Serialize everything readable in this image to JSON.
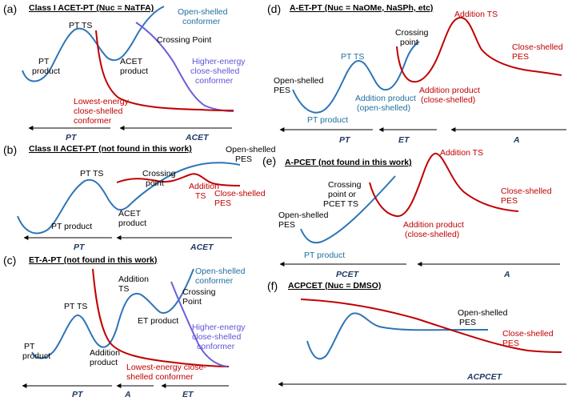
{
  "colors": {
    "open_shelled": "#2e75b6",
    "closed_shelled": "#c00000",
    "higher_energy": "#6a5fd9",
    "axis_label": "#1f3864"
  },
  "panels": {
    "a": {
      "letter": "(a)",
      "title": "Class I ACET-PT (Nuc = NaTFA)",
      "labels": {
        "pt_ts": "PT TS",
        "pt_product": [
          "PT",
          "product"
        ],
        "acet_product": [
          "ACET",
          "product"
        ],
        "open_conformer": [
          "Open-shelled",
          "conformer"
        ],
        "crossing_point": "Crossing Point",
        "higher_energy": [
          "Higher-energy",
          "close-shelled",
          "conformer"
        ],
        "lowest_energy": [
          "Lowest-energy",
          "close-shelled",
          "conformer"
        ]
      },
      "axis": [
        "PT",
        "ACET"
      ]
    },
    "b": {
      "letter": "(b)",
      "title": "Class II ACET-PT (not found in this work)",
      "labels": {
        "open_pes": [
          "Open-shelled",
          "PES"
        ],
        "pt_ts": "PT TS",
        "crossing_point": [
          "Crossing",
          "point"
        ],
        "addition_ts": [
          "Addition",
          "TS"
        ],
        "close_pes": [
          "Close-shelled",
          "PES"
        ],
        "acet_product": [
          "ACET",
          "product"
        ],
        "pt_product": "PT product"
      },
      "axis": [
        "PT",
        "ACET"
      ]
    },
    "c": {
      "letter": "(c)",
      "title": "ET-A-PT (not found in this work)",
      "labels": {
        "open_conformer": [
          "Open-shelled",
          "conformer"
        ],
        "addition_ts": [
          "Addition",
          "TS"
        ],
        "pt_ts": "PT TS",
        "crossing_point": [
          "Crossing",
          "Point"
        ],
        "et_product": "ET product",
        "pt_product": [
          "PT",
          "product"
        ],
        "addition_product": [
          "Addition",
          "product"
        ],
        "higher_energy": [
          "Higher-energy",
          "close-shelled",
          "conformer"
        ],
        "lowest_energy": [
          "Lowest-energy close-",
          "shelled conformer"
        ]
      },
      "axis": [
        "PT",
        "A",
        "ET"
      ]
    },
    "d": {
      "letter": "(d)",
      "title": "A-ET-PT (Nuc = NaOMe, NaSPh, etc)",
      "labels": {
        "addition_ts": "Addition TS",
        "crossing_point": [
          "Crossing",
          "point"
        ],
        "close_pes": [
          "Close-shelled",
          "PES"
        ],
        "pt_ts": "PT TS",
        "open_pes": [
          "Open-shelled",
          "PES"
        ],
        "addition_product_open": [
          "Addition product",
          "(open-shelled)"
        ],
        "addition_product_closed": [
          "Addition product",
          "(close-shelled)"
        ],
        "pt_product": "PT product"
      },
      "axis": [
        "PT",
        "ET",
        "A"
      ]
    },
    "e": {
      "letter": "(e)",
      "title": "A-PCET (not found in this work)",
      "labels": {
        "addition_ts": "Addition TS",
        "crossing_point": [
          "Crossing",
          "point or",
          "PCET TS"
        ],
        "open_pes": [
          "Open-shelled",
          "PES"
        ],
        "close_pes": [
          "Close-shelled",
          "PES"
        ],
        "addition_product": [
          "Addition product",
          "(close-shelled)"
        ],
        "pt_product": "PT product"
      },
      "axis": [
        "PCET",
        "A"
      ]
    },
    "f": {
      "letter": "(f)",
      "title": "ACPCET (Nuc = DMSO)",
      "labels": {
        "open_pes": [
          "Open-shelled",
          "PES"
        ],
        "close_pes": [
          "Close-shelled",
          "PES"
        ]
      },
      "axis": [
        "ACPCET"
      ]
    }
  }
}
